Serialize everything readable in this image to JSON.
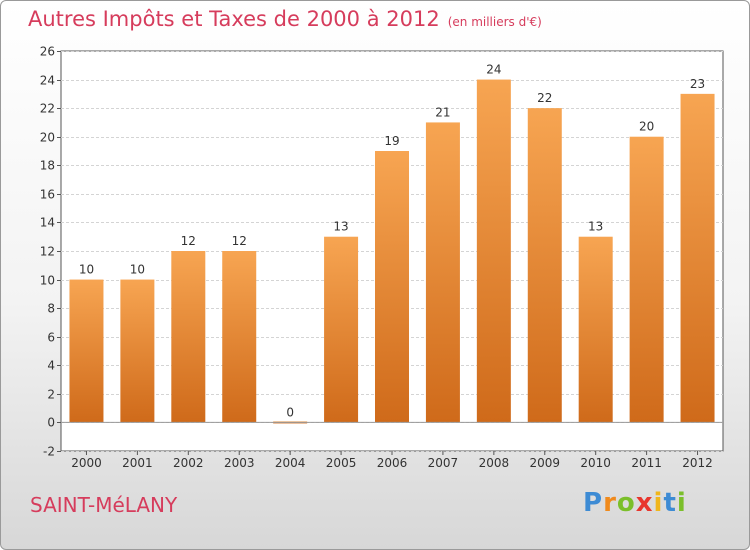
{
  "header": {
    "title": "Autres Impôts et Taxes de 2000 à 2012",
    "unit": "(en milliers d'€)"
  },
  "footer": {
    "commune": "SAINT-MéLANY",
    "logo_letters": [
      {
        "ch": "P",
        "color": "#3d8bd4"
      },
      {
        "ch": "r",
        "color": "#f08a1c"
      },
      {
        "ch": "o",
        "color": "#7bbf2a"
      },
      {
        "ch": "x",
        "color": "#e8362d"
      },
      {
        "ch": "i",
        "color": "#f0b61c"
      },
      {
        "ch": "t",
        "color": "#3d8bd4"
      },
      {
        "ch": "i",
        "color": "#7bbf2a"
      }
    ]
  },
  "colors": {
    "bar_top": "#f7a552",
    "bar_bottom": "#cf6a1a",
    "accent_text": "#d63c5c"
  },
  "chart_data": {
    "type": "bar",
    "categories": [
      "2000",
      "2001",
      "2002",
      "2003",
      "2004",
      "2005",
      "2006",
      "2007",
      "2008",
      "2009",
      "2010",
      "2011",
      "2012"
    ],
    "values": [
      10,
      10,
      12,
      12,
      0,
      13,
      19,
      21,
      24,
      22,
      13,
      20,
      23
    ],
    "ylim": [
      -2,
      26
    ],
    "yticks": [
      -2,
      0,
      2,
      4,
      6,
      8,
      10,
      12,
      14,
      16,
      18,
      20,
      22,
      24,
      26
    ],
    "grid": true,
    "xlabel": "",
    "ylabel": ""
  }
}
